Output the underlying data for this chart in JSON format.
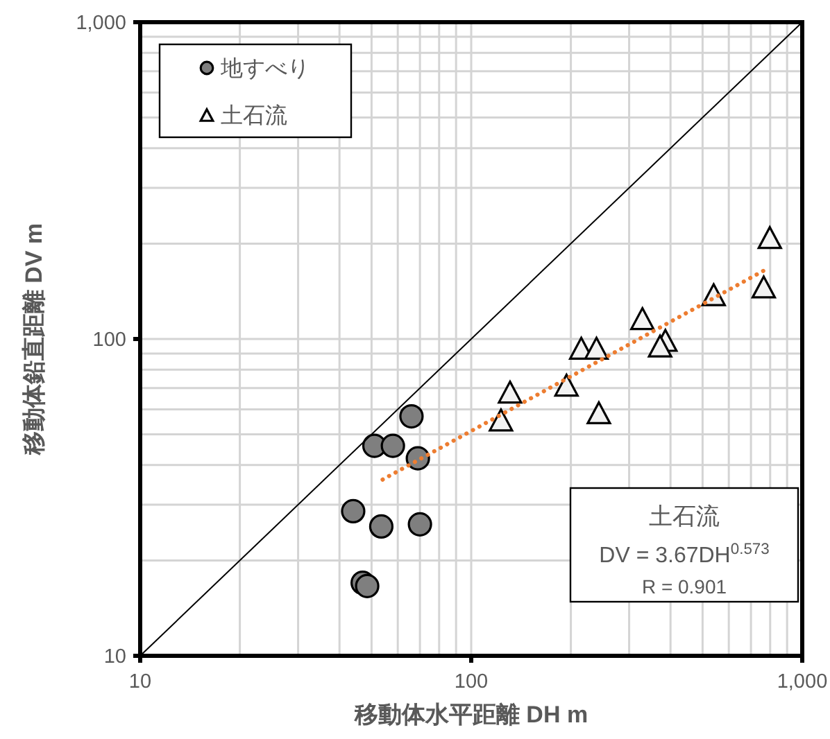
{
  "chart_data": {
    "type": "scatter",
    "xlabel": "移動体水平距離 DH m",
    "ylabel": "移動体鉛直距離 DV m",
    "xlim": [
      10,
      1000
    ],
    "ylim": [
      10,
      1000
    ],
    "xticks": [
      10,
      {
        "value": 20,
        "label": null
      },
      {
        "value": 30,
        "label": null
      },
      {
        "value": 40,
        "label": null
      },
      {
        "value": 50,
        "label": null
      },
      {
        "value": 60,
        "label": null
      },
      {
        "value": 70,
        "label": null
      },
      {
        "value": 80,
        "label": null
      },
      {
        "value": 90,
        "label": null
      },
      100,
      {
        "value": 200,
        "label": null
      },
      {
        "value": 300,
        "label": null
      },
      {
        "value": 400,
        "label": null
      },
      {
        "value": 500,
        "label": null
      },
      {
        "value": 600,
        "label": null
      },
      {
        "value": 700,
        "label": null
      },
      {
        "value": 800,
        "label": null
      },
      {
        "value": 900,
        "label": null
      },
      {
        "value": 1000,
        "label": "1,000"
      }
    ],
    "yticks": [
      10,
      {
        "value": 20,
        "label": null
      },
      {
        "value": 30,
        "label": null
      },
      {
        "value": 40,
        "label": null
      },
      {
        "value": 50,
        "label": null
      },
      {
        "value": 60,
        "label": null
      },
      {
        "value": 70,
        "label": null
      },
      {
        "value": 80,
        "label": null
      },
      {
        "value": 90,
        "label": null
      },
      100,
      {
        "value": 200,
        "label": null
      },
      {
        "value": 300,
        "label": null
      },
      {
        "value": 400,
        "label": null
      },
      {
        "value": 500,
        "label": null
      },
      {
        "value": 600,
        "label": null
      },
      {
        "value": 700,
        "label": null
      },
      {
        "value": 800,
        "label": null
      },
      {
        "value": 900,
        "label": null
      },
      {
        "value": 1000,
        "label": "1,000"
      }
    ],
    "log": "xy",
    "grid": true,
    "legend": "top left",
    "series": [
      {
        "name": "地すべり",
        "type": "scatter",
        "marker": "circle",
        "color": "#7f7f7f",
        "x": [
          66,
          51,
          58,
          69,
          44,
          53.5,
          70,
          47,
          48.5
        ],
        "values": [
          57,
          46,
          46,
          42,
          28.6,
          25.6,
          26,
          17,
          16.6
        ]
      },
      {
        "name": "土石流",
        "type": "scatter",
        "marker": "triangle",
        "color": "#f2f2f2",
        "x": [
          798,
          765,
          540,
          329,
          386,
          372,
          215,
          239,
          194,
          131,
          123,
          243
        ],
        "values": [
          209,
          146,
          138,
          116,
          99,
          95,
          93.5,
          93.5,
          71.5,
          68,
          55.5,
          58.5
        ]
      },
      {
        "type": "line",
        "color": "#000000",
        "line_style": "solid",
        "marker": "none",
        "x": [
          10,
          1000
        ],
        "values": [
          10,
          1000
        ]
      },
      {
        "type": "line",
        "color": "#ed7d31",
        "line_style": "dotted",
        "marker": "none",
        "x": [
          54,
          795
        ],
        "values": [
          36,
          168
        ]
      }
    ],
    "annotations": [
      "土石流",
      "DV = 3.67DH$^{0.573}$",
      "R = 0.901"
    ]
  }
}
